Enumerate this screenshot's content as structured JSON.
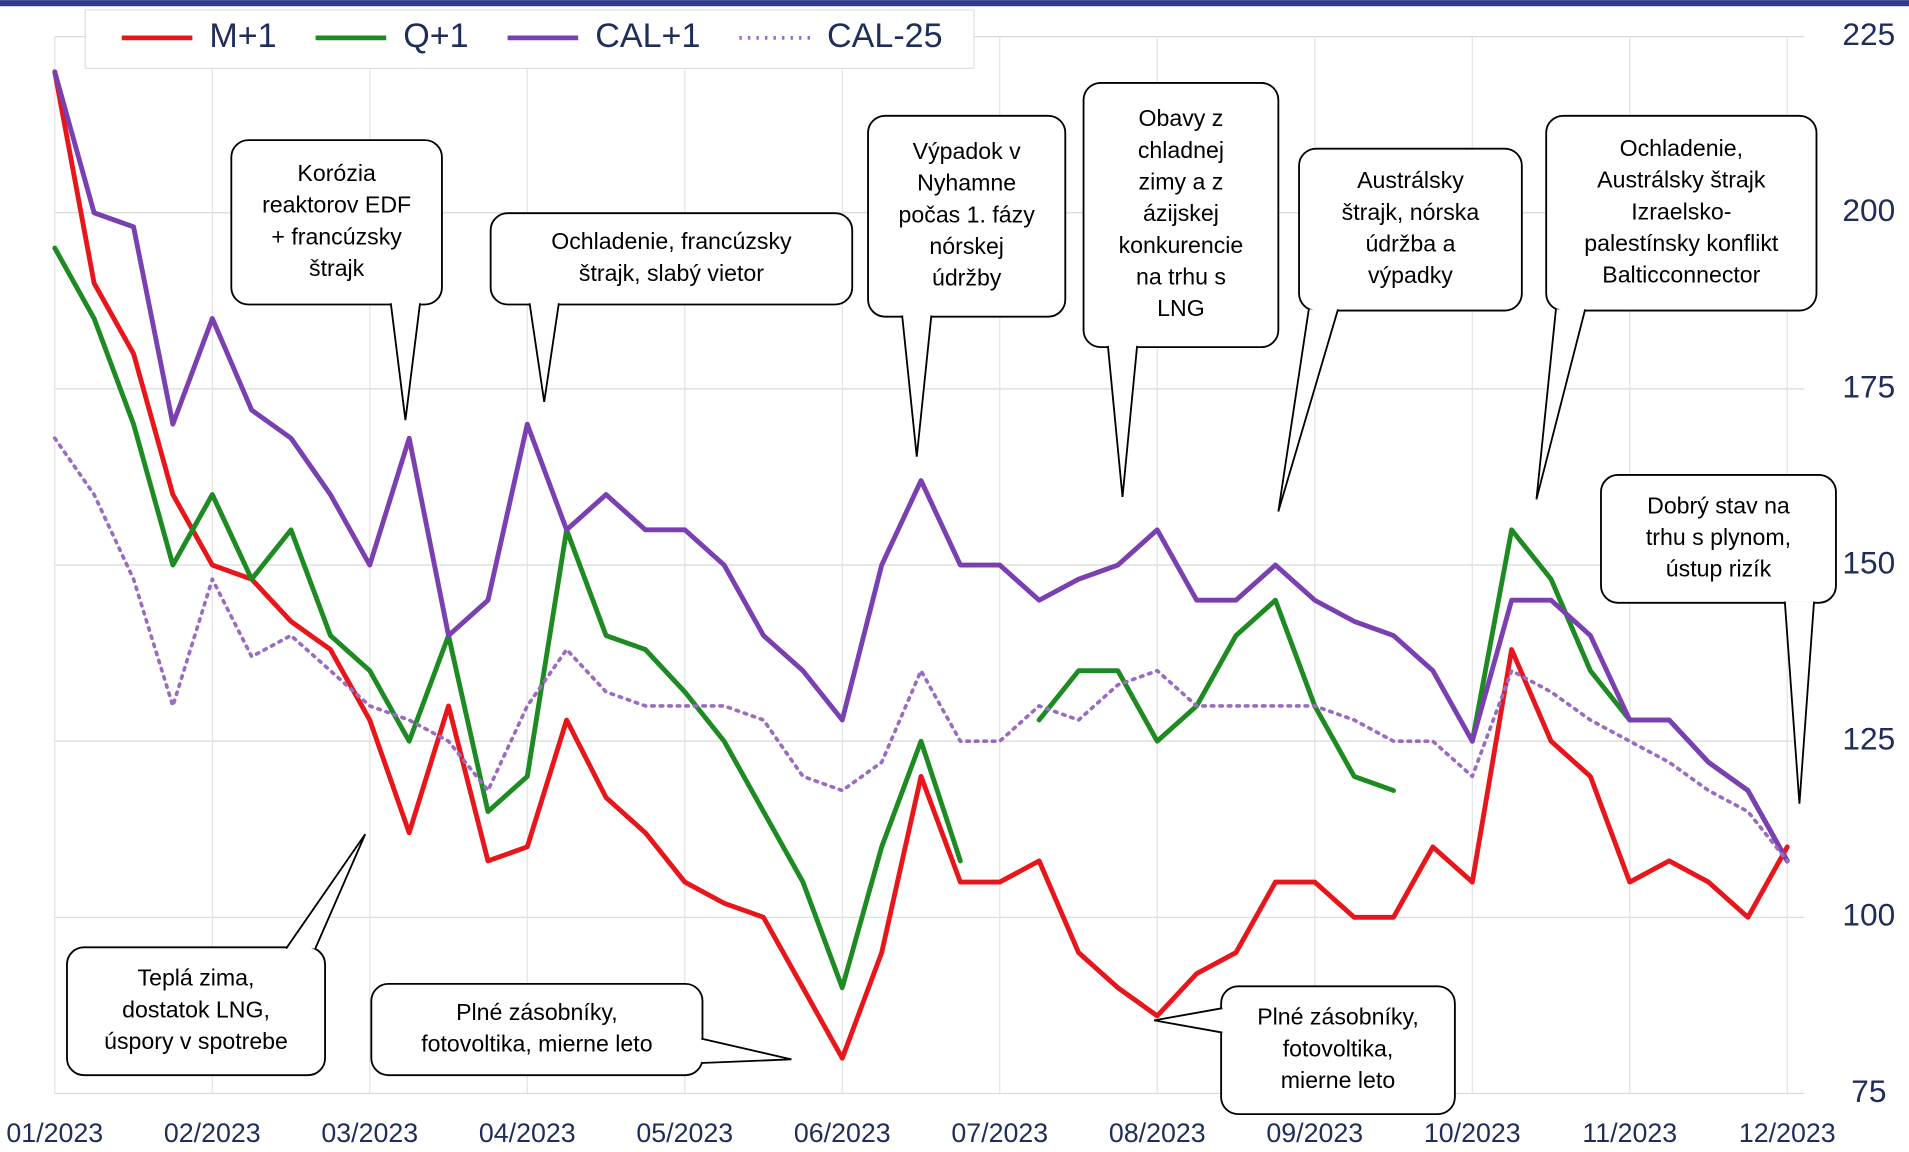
{
  "chart_data": {
    "type": "line",
    "categories": [
      "01/2023",
      null,
      null,
      null,
      "02/2023",
      null,
      null,
      null,
      "03/2023",
      null,
      null,
      null,
      "04/2023",
      null,
      null,
      null,
      "05/2023",
      null,
      null,
      null,
      "06/2023",
      null,
      null,
      null,
      "07/2023",
      null,
      null,
      null,
      "08/2023",
      null,
      null,
      null,
      "09/2023",
      null,
      null,
      null,
      "10/2023",
      null,
      null,
      null,
      "11/2023",
      null,
      null,
      null,
      "12/2023"
    ],
    "series": [
      {
        "name": "M+1",
        "color": "#e8161b",
        "dash": false,
        "values": [
          220,
          190,
          180,
          160,
          150,
          148,
          142,
          138,
          128,
          112,
          130,
          108,
          110,
          128,
          117,
          112,
          105,
          102,
          100,
          90,
          80,
          95,
          120,
          105,
          105,
          108,
          95,
          90,
          86,
          92,
          95,
          105,
          105,
          100,
          100,
          110,
          105,
          138,
          125,
          120,
          105,
          108,
          105,
          100,
          110
        ]
      },
      {
        "name": "Q+1",
        "color": "#1e8a22",
        "dash": false,
        "values": [
          195,
          185,
          170,
          150,
          160,
          148,
          155,
          140,
          135,
          125,
          140,
          115,
          120,
          155,
          140,
          138,
          132,
          125,
          115,
          105,
          90,
          110,
          125,
          108,
          null,
          128,
          135,
          135,
          125,
          130,
          140,
          145,
          130,
          120,
          118,
          null,
          125,
          155,
          148,
          135,
          128,
          128,
          122,
          118,
          108
        ]
      },
      {
        "name": "CAL+1",
        "color": "#7a3fb0",
        "dash": false,
        "values": [
          220,
          200,
          198,
          170,
          185,
          172,
          168,
          160,
          150,
          168,
          140,
          145,
          170,
          155,
          160,
          155,
          155,
          150,
          140,
          135,
          128,
          150,
          162,
          150,
          150,
          145,
          148,
          150,
          155,
          145,
          145,
          150,
          145,
          142,
          140,
          135,
          125,
          145,
          145,
          140,
          128,
          128,
          122,
          118,
          108
        ]
      },
      {
        "name": "CAL-25",
        "color": "#9a6cc0",
        "dash": true,
        "values": [
          168,
          160,
          148,
          130,
          148,
          137,
          140,
          135,
          130,
          128,
          125,
          118,
          130,
          138,
          132,
          130,
          130,
          130,
          128,
          120,
          118,
          122,
          135,
          125,
          125,
          130,
          128,
          133,
          135,
          130,
          130,
          130,
          130,
          128,
          125,
          125,
          120,
          135,
          132,
          128,
          125,
          122,
          118,
          115,
          108
        ]
      }
    ],
    "ylim": [
      75,
      225
    ],
    "yticks": [
      75,
      100,
      125,
      150,
      175,
      200,
      225
    ],
    "y_axis_side": "right",
    "grid": true,
    "legend": "top-left",
    "annotations": [
      {
        "lines": [
          "Korózia",
          "reaktorov EDF",
          "+ francúzsky",
          "štrajk"
        ]
      },
      {
        "lines": [
          "Ochladenie, francúzsky",
          "štrajk, slabý vietor"
        ]
      },
      {
        "lines": [
          "Výpadok v",
          "Nyhamne",
          "počas 1. fázy",
          "nórskej",
          "údržby"
        ]
      },
      {
        "lines": [
          "Obavy z",
          "chladnej",
          "zimy a z",
          "ázijskej",
          "konkurencie",
          "na trhu s",
          "LNG"
        ]
      },
      {
        "lines": [
          "Austrálsky",
          "štrajk, nórska",
          "údržba a",
          "výpadky"
        ]
      },
      {
        "lines": [
          "Ochladenie,",
          "Austrálsky štrajk",
          "Izraelsko-",
          "palestínsky konflikt",
          "Balticconnector"
        ]
      },
      {
        "lines": [
          "Dobrý stav na",
          "trhu s plynom,",
          "ústup rizík"
        ]
      },
      {
        "lines": [
          "Teplá zima,",
          "dostatok LNG,",
          "úspory v spotrebe"
        ]
      },
      {
        "lines": [
          "Plné zásobníky,",
          "fotovoltika, mierne leto"
        ]
      },
      {
        "lines": [
          "Plné zásobníky,",
          "fotovoltika,",
          "mierne leto"
        ]
      }
    ]
  }
}
